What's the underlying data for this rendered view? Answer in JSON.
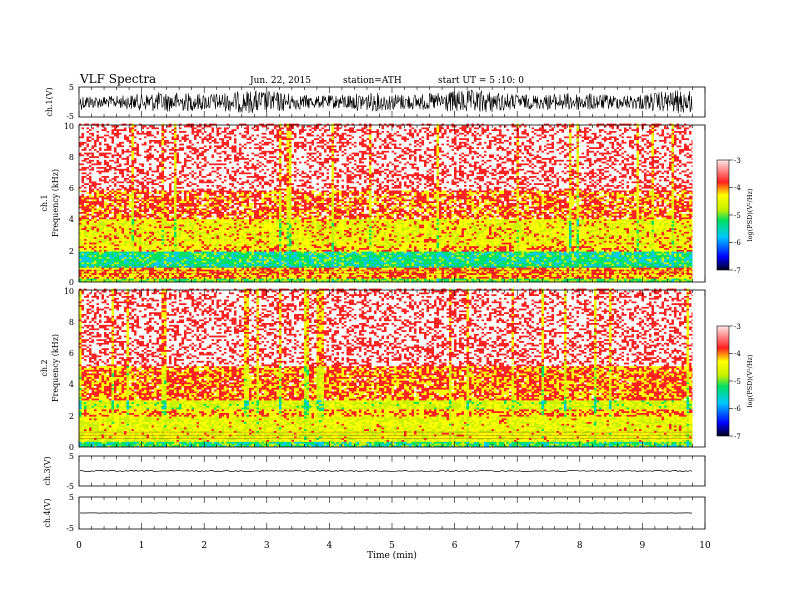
{
  "header": {
    "title": "VLF  Spectra",
    "date": "Jun. 22, 2015",
    "station": "station=ATH",
    "start": "start  UT =  5 :10: 0"
  },
  "colors": {
    "background": "#ffffff",
    "trace": "#000000",
    "spectrogram_palette": [
      "#000020",
      "#0000ff",
      "#00c8ff",
      "#00e060",
      "#c8f000",
      "#ffff00",
      "#ff2020",
      "#ffffff"
    ]
  },
  "chart_data": [
    {
      "type": "line",
      "name": "ch1-waveform",
      "ylabel": "ch.1(V)",
      "ylim": [
        -5,
        5
      ],
      "yticks": [
        "5",
        "-5"
      ],
      "trace_amplitude": 4,
      "x_end_min": 9.8
    },
    {
      "type": "heatmap",
      "name": "ch1-spectrogram",
      "ylabel_channel": "ch.1",
      "ylabel": "Frequency  (kHz)",
      "ylim": [
        0,
        10
      ],
      "yticks": [
        "0",
        "2",
        "4",
        "6",
        "8",
        "10"
      ],
      "x_end_min": 9.8,
      "bands": [
        {
          "from": 0.0,
          "to": 0.25,
          "level": -5.0
        },
        {
          "from": 0.25,
          "to": 0.9,
          "level": -4.0
        },
        {
          "from": 0.9,
          "to": 1.9,
          "level": -5.3
        },
        {
          "from": 1.9,
          "to": 2.3,
          "level": -4.1
        },
        {
          "from": 2.3,
          "to": 4.0,
          "level": -4.3
        },
        {
          "from": 4.0,
          "to": 5.8,
          "level": -3.8
        },
        {
          "from": 5.8,
          "to": 10.0,
          "level": -3.4
        }
      ]
    },
    {
      "type": "heatmap",
      "name": "ch2-spectrogram",
      "ylabel_channel": "ch.2",
      "ylabel": "Frequency  (kHz)",
      "ylim": [
        0,
        10
      ],
      "yticks": [
        "0",
        "2",
        "4",
        "6",
        "8",
        "10"
      ],
      "x_end_min": 9.8,
      "bands": [
        {
          "from": 0.0,
          "to": 0.3,
          "level": -5.2
        },
        {
          "from": 0.3,
          "to": 2.0,
          "level": -4.4
        },
        {
          "from": 2.0,
          "to": 2.4,
          "level": -4.1
        },
        {
          "from": 2.4,
          "to": 3.0,
          "level": -4.6
        },
        {
          "from": 3.0,
          "to": 5.2,
          "level": -3.9
        },
        {
          "from": 5.2,
          "to": 10.0,
          "level": -3.4
        }
      ]
    },
    {
      "type": "line",
      "name": "ch3-waveform",
      "ylabel": "ch.3(V)",
      "ylim": [
        -5,
        5
      ],
      "yticks": [
        "5",
        "-5"
      ],
      "trace_level": 0,
      "x_end_min": 9.8
    },
    {
      "type": "line",
      "name": "ch4-waveform",
      "ylabel": "ch.4(V)",
      "ylim": [
        -5,
        5
      ],
      "yticks": [
        "5",
        "-5"
      ],
      "trace_level": 0,
      "x_end_min": 9.8
    }
  ],
  "x_axis": {
    "label": "Time  (min)",
    "xlim": [
      0,
      10
    ],
    "ticks": [
      "0",
      "1",
      "2",
      "3",
      "4",
      "5",
      "6",
      "7",
      "8",
      "9",
      "10"
    ]
  },
  "colorbars": [
    {
      "label": "log(PSD)(V²/Hz)",
      "range": [
        -7,
        -3
      ],
      "ticks": [
        "-3",
        "-4",
        "-5",
        "-6",
        "-7"
      ]
    },
    {
      "label": "log(PSD)(V²/Hz)",
      "range": [
        -7,
        -3
      ],
      "ticks": [
        "-3",
        "-4",
        "-5",
        "-6",
        "-7"
      ]
    }
  ]
}
